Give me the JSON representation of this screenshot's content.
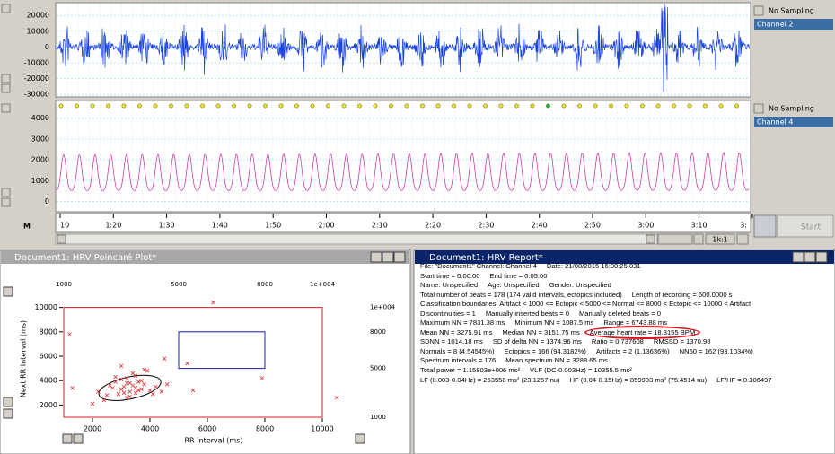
{
  "channels": [
    {
      "sampling": "No Sampling",
      "name": "Channel 2",
      "ylim": [
        -31000,
        27500
      ],
      "yticks": [
        -30000,
        -20000,
        -10000,
        0,
        10000,
        20000
      ],
      "color": "#1a44e0"
    },
    {
      "sampling": "No Sampling",
      "name": "Channel 4",
      "ylim": [
        -450,
        4800
      ],
      "yticks": [
        0,
        1000,
        2000,
        3000,
        4000
      ],
      "color": "#c8289e"
    }
  ],
  "time_axis": [
    "10",
    "1:20",
    "1:30",
    "1:40",
    "1:50",
    "2:00",
    "2:10",
    "2:20",
    "2:30",
    "2:40",
    "2:50",
    "3:00",
    "3:10",
    "3:"
  ],
  "m_label": "M",
  "zoom": "1k:1",
  "start": "Start",
  "poincare": {
    "title": "Document1: HRV Poincaré Plot*",
    "xlabel": "RR Interval (ms)",
    "ylabel": "Next RR Interval (ms)",
    "xlim": [
      0,
      10800
    ],
    "ylim": [
      0,
      11500
    ],
    "xticks": [
      2000,
      4000,
      6000,
      8000,
      10000
    ],
    "yticks": [
      2000,
      4000,
      6000,
      8000,
      10000
    ],
    "top_ticks": [
      1000,
      5000,
      8000,
      {
        "value": 10000,
        "label": "1e+004"
      }
    ],
    "right_ticks": [
      1000,
      5000,
      8000,
      {
        "value": 10000,
        "label": "1e+004"
      }
    ],
    "artifact_box": [
      1000,
      10000
    ],
    "normal_box": [
      5000,
      8000
    ],
    "box_colors": [
      "#d81c24",
      "#1c1ca8"
    ],
    "point_color": "#e03030",
    "ellipse": {
      "cx": 3300,
      "cy": 3400,
      "rx": 1100,
      "ry": 900
    },
    "points": {
      "x": [
        2600,
        2800,
        3000,
        3100,
        3200,
        3300,
        3400,
        3500,
        3600,
        3700,
        2900,
        3100,
        3300,
        3500,
        3800,
        4000,
        2700,
        3000,
        3200,
        3400,
        3600,
        3900,
        4200,
        2500,
        2800,
        3300,
        3700,
        4100,
        4400,
        3000,
        3500,
        2200,
        2400,
        3800,
        4600,
        3200,
        1200,
        6200,
        5300,
        7900,
        10500,
        5500,
        1300,
        2000,
        4500
      ],
      "y": [
        3600,
        3900,
        3300,
        3500,
        4200,
        3800,
        3600,
        3400,
        3900,
        3300,
        2900,
        3000,
        3100,
        4400,
        3700,
        3200,
        3400,
        4100,
        3800,
        4600,
        3200,
        4800,
        3500,
        2800,
        4300,
        2700,
        4000,
        2900,
        3100,
        5200,
        3000,
        3100,
        2400,
        4900,
        3700,
        2600,
        7800,
        10400,
        5400,
        4200,
        2600,
        3200,
        3400,
        2100,
        5800
      ]
    }
  },
  "report": {
    "title": "Document1: HRV Report*",
    "highlight": {
      "line": 7,
      "field": 2
    },
    "lines": [
      [
        "File: \"Document1\"  Channel: Channel 4",
        "Date: 21/08/2015 16:00:25.031"
      ],
      [
        "Start time = 0:00:00",
        "End time = 0:05:00"
      ],
      [
        "Name: Unspecified",
        "Age: Unspecified",
        "Gender: Unspecified"
      ],
      [
        "Total number of beats = 178 (174 valid intervals, ectopics included)",
        "Length of recording = 600.0000 s"
      ],
      [
        "Classification boundaries: Artifact < 1000 <= Ectopic < 5000 <= Normal <= 8000 < Ectopic <= 10000 < Artifact"
      ],
      [
        "Discontinuities = 1",
        "Manually inserted beats = 0",
        "Manually deleted beats = 0"
      ],
      [
        "Maximum NN = 7831.38 ms",
        "Minimum NN = 1087.5 ms",
        "Range = 6743.88 ms"
      ],
      [
        "Mean NN = 3275.91 ms",
        "Median NN = 3151.75 ms",
        "Average heart rate = 18.3155 BPM"
      ],
      [
        "SDNN = 1014.18 ms",
        "SD of delta NN = 1374.96 ms",
        "Ratio = 0.737608",
        "RMSSD = 1370.98"
      ],
      [
        "Normals = 8 (4.54545%)",
        "Ectopics = 166 (94.3182%)",
        "Artifacts = 2 (1.13636%)",
        "NN50 = 162 (93.1034%)"
      ],
      [
        "Spectrum intervals = 176",
        "Mean spectrum NN = 3288.65 ms"
      ],
      [
        "Total power = 1.15803e+006 ms²",
        "VLF (DC-0.003Hz) = 10355.5 ms²"
      ],
      [
        "LF (0.003-0.04Hz) = 263558 ms² (23.1257 nu)",
        "HF (0.04-0.15Hz) = 859903 ms² (75.4514 nu)",
        "LF/HF = 0.306497"
      ]
    ]
  }
}
